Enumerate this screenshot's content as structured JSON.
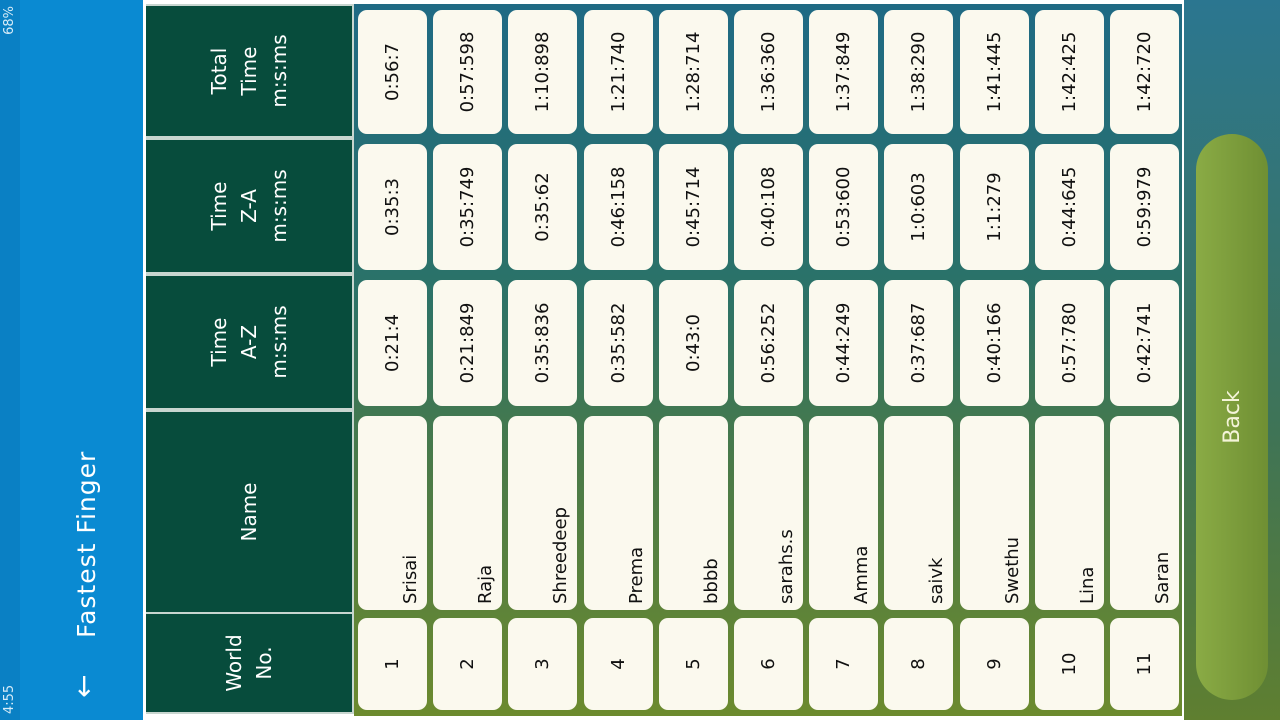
{
  "status_bar": {
    "time": "4:55",
    "right": "68%"
  },
  "app_bar": {
    "title": "Fastest Finger",
    "back_icon": "arrow-left-icon"
  },
  "table": {
    "headers": [
      "World\nNo.",
      "Name",
      "Time\nA-Z\nm:s:ms",
      "Time\nZ-A\nm:s:ms",
      "Total\nTime\nm:s:ms"
    ],
    "rows": [
      [
        "1",
        "Srisai",
        "0:21:4",
        "0:35:3",
        "0:56:7"
      ],
      [
        "2",
        "Raja",
        "0:21:849",
        "0:35:749",
        "0:57:598"
      ],
      [
        "3",
        "Shreedeep",
        "0:35:836",
        "0:35:62",
        "1:10:898"
      ],
      [
        "4",
        "Prema",
        "0:35:582",
        "0:46:158",
        "1:21:740"
      ],
      [
        "5",
        "bbbb",
        "0:43:0",
        "0:45:714",
        "1:28:714"
      ],
      [
        "6",
        "sarahs.s",
        "0:56:252",
        "0:40:108",
        "1:36:360"
      ],
      [
        "7",
        "Amma",
        "0:44:249",
        "0:53:600",
        "1:37:849"
      ],
      [
        "8",
        "saivk",
        "0:37:687",
        "1:0:603",
        "1:38:290"
      ],
      [
        "9",
        "Swethu",
        "0:40:166",
        "1:1:279",
        "1:41:445"
      ],
      [
        "10",
        "Lina",
        "0:57:780",
        "0:44:645",
        "1:42:425"
      ],
      [
        "11",
        "Saran",
        "0:42:741",
        "0:59:979",
        "1:42:720"
      ]
    ]
  },
  "back_button": "Back",
  "colors": {
    "app_bar": "#0a8ad2",
    "header": "#074c3c",
    "cell": "#fbf9ee",
    "button": "#7a9a3a"
  }
}
